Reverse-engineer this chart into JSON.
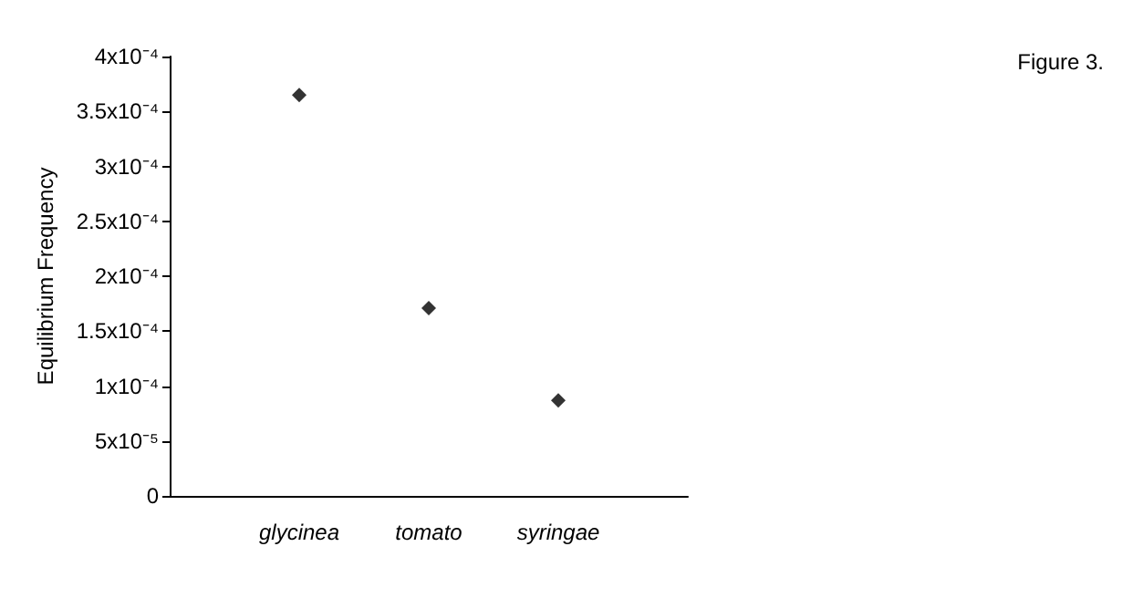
{
  "chart_data": {
    "type": "scatter",
    "ylabel": "Equilibrium Frequency",
    "annotations": [
      "Figure 3."
    ],
    "categories": [
      "glycinea",
      "tomato",
      "syringae"
    ],
    "series": [
      {
        "color": "#000000",
        "values": [
          0.000365,
          0.000171,
          8.7e-05
        ]
      }
    ],
    "ylim": [
      0,
      0.0004
    ],
    "yticks": [
      {
        "value": 0,
        "label": "0"
      },
      {
        "value": 5e-05,
        "label": "5x10⁻⁵"
      },
      {
        "value": 0.0001,
        "label": "1x10⁻⁴"
      },
      {
        "value": 0.00015,
        "label": "1.5x10⁻⁴"
      },
      {
        "value": 0.0002,
        "label": "2x10⁻⁴"
      },
      {
        "value": 0.00025,
        "label": "2.5x10⁻⁴"
      },
      {
        "value": 0.0003,
        "label": "3x10⁻⁴"
      },
      {
        "value": 0.00035,
        "label": "3.5x10⁻⁴"
      },
      {
        "value": 0.0004,
        "label": "4x10⁻⁴"
      }
    ],
    "grid": false,
    "marker": "diamond"
  }
}
